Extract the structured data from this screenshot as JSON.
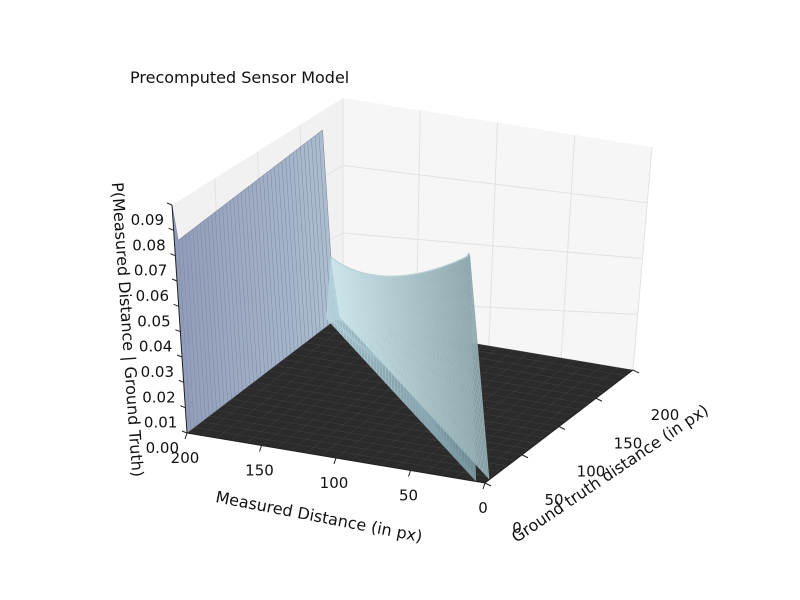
{
  "chart_data": {
    "type": "surface3d",
    "title": "Precomputed Sensor Model",
    "xlabel": "Measured Distance (in px)",
    "ylabel": "Ground truth distance (in px)",
    "zlabel": "P(Measured Distance | Ground Truth)",
    "x_ticks": [
      "0",
      "50",
      "100",
      "150",
      "200"
    ],
    "y_ticks": [
      "0",
      "50",
      "100",
      "150",
      "200"
    ],
    "z_ticks": [
      "0.00",
      "0.01",
      "0.02",
      "0.03",
      "0.04",
      "0.05",
      "0.06",
      "0.07",
      "0.08",
      "0.09"
    ],
    "xlim": [
      0,
      200
    ],
    "ylim": [
      0,
      200
    ],
    "zlim": [
      0,
      0.09
    ],
    "peak_probability_at_max_range": 0.09,
    "plateau_probability_at_max_range": 0.075,
    "diagonal_peak_probability_at_zero": 0.09,
    "diagonal_peak_probability_at_max": 0.025,
    "floor_probability": 0.0,
    "colormap": "bone",
    "floor_color": "#2b2b2b",
    "wall_color": "#8f9bb7",
    "ridge_color": "#b7d0d4"
  }
}
